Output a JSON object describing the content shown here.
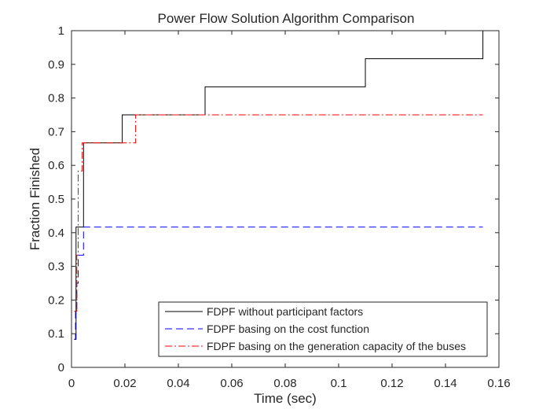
{
  "chart_data": {
    "type": "line",
    "title": "Power Flow Solution Algorithm Comparison",
    "xlabel": "Time (sec)",
    "ylabel": "Fraction Finished",
    "xlim": [
      0,
      0.16
    ],
    "ylim": [
      0,
      1
    ],
    "xticks": [
      0,
      0.02,
      0.04,
      0.06,
      0.08,
      0.1,
      0.12,
      0.14,
      0.16
    ],
    "xtick_labels": [
      "0",
      "0.02",
      "0.04",
      "0.06",
      "0.08",
      "0.1",
      "0.12",
      "0.14",
      "0.16"
    ],
    "yticks": [
      0,
      0.1,
      0.2,
      0.3,
      0.4,
      0.5,
      0.6,
      0.7,
      0.8,
      0.9,
      1
    ],
    "ytick_labels": [
      "0",
      "0.1",
      "0.2",
      "0.3",
      "0.4",
      "0.5",
      "0.6",
      "0.7",
      "0.8",
      "0.9",
      "1"
    ],
    "grid": false,
    "box": true,
    "legend_position": "bottom-right",
    "step": true,
    "series": [
      {
        "name": "FDPF without participant factors",
        "color": "#000000",
        "dash": "solid",
        "x": [
          0.001,
          0.0017,
          0.0045,
          0.019,
          0.05,
          0.11,
          0.154
        ],
        "y": [
          0.0833,
          0.4167,
          0.6667,
          0.75,
          0.8333,
          0.9167,
          1.0
        ],
        "x_end": 0.154
      },
      {
        "name": "FDPF basing on the cost function",
        "color": "#0000ff",
        "dash": "dashed",
        "x": [
          0.001,
          0.0015,
          0.002,
          0.0025,
          0.003,
          0.004,
          0.0045
        ],
        "y": [
          0.0833,
          0.1667,
          0.25,
          0.3333,
          0.3333,
          0.3333,
          0.4167
        ],
        "x_end": 0.154
      },
      {
        "name": "FDPF basing on the generation capacity of the buses",
        "color": "#ff0000",
        "dash": "dashdot",
        "x": [
          0.001,
          0.002,
          0.0025,
          0.003,
          0.004,
          0.024
        ],
        "y": [
          0.1667,
          0.3333,
          0.5833,
          0.5833,
          0.6667,
          0.75
        ],
        "x_end": 0.154
      }
    ]
  }
}
